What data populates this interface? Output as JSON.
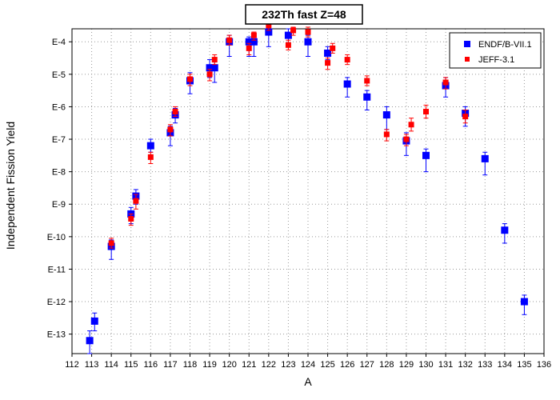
{
  "chart_data": {
    "type": "scatter",
    "title": "232Th fast Z=48",
    "xlabel": "A",
    "ylabel": "Independent Fission Yield",
    "xlim": [
      112,
      136
    ],
    "ylim_exponent": [
      -13.6,
      -3.6
    ],
    "y_scale": "log",
    "grid": true,
    "legend_position": "top-right",
    "x_ticks": [
      "112",
      "113",
      "114",
      "115",
      "116",
      "117",
      "118",
      "119",
      "120",
      "121",
      "122",
      "123",
      "124",
      "125",
      "126",
      "127",
      "128",
      "129",
      "130",
      "131",
      "132",
      "133",
      "134",
      "135",
      "136"
    ],
    "y_ticks": [
      {
        "label": "E-4",
        "exp": -4
      },
      {
        "label": "E-5",
        "exp": -5
      },
      {
        "label": "E-6",
        "exp": -6
      },
      {
        "label": "E-7",
        "exp": -7
      },
      {
        "label": "E-8",
        "exp": -8
      },
      {
        "label": "E-9",
        "exp": -9
      },
      {
        "label": "E-10",
        "exp": -10
      },
      {
        "label": "E-11",
        "exp": -11
      },
      {
        "label": "E-12",
        "exp": -12
      },
      {
        "label": "E-13",
        "exp": -13
      }
    ],
    "series": [
      {
        "name": "ENDF/B-VII.1",
        "color": "#0000ff",
        "marker": "square-large",
        "points": [
          {
            "x": 112.9,
            "exp": -13.2,
            "lo": -13.6,
            "hi": -12.9
          },
          {
            "x": 113.15,
            "exp": -12.6,
            "lo": -12.9,
            "hi": -12.35
          },
          {
            "x": 114.0,
            "exp": -10.3,
            "lo": -10.7,
            "hi": -10.1
          },
          {
            "x": 115.0,
            "exp": -9.3,
            "lo": -9.6,
            "hi": -9.1
          },
          {
            "x": 115.25,
            "exp": -8.75,
            "lo": -9.0,
            "hi": -8.55
          },
          {
            "x": 116.0,
            "exp": -7.2,
            "lo": -7.4,
            "hi": -7.0
          },
          {
            "x": 117.0,
            "exp": -6.8,
            "lo": -7.2,
            "hi": -6.6
          },
          {
            "x": 117.25,
            "exp": -6.25,
            "lo": -6.5,
            "hi": -6.05
          },
          {
            "x": 118.0,
            "exp": -5.2,
            "lo": -5.6,
            "hi": -4.95
          },
          {
            "x": 119.0,
            "exp": -4.8,
            "lo": -5.1,
            "hi": -4.55
          },
          {
            "x": 119.25,
            "exp": -4.8,
            "lo": -5.25,
            "hi": -4.6
          },
          {
            "x": 120.0,
            "exp": -4.0,
            "lo": -4.45,
            "hi": -3.8
          },
          {
            "x": 121.0,
            "exp": -4.0,
            "lo": -4.45,
            "hi": -3.85
          },
          {
            "x": 121.25,
            "exp": -4.0,
            "lo": -4.45,
            "hi": -3.85
          },
          {
            "x": 122.0,
            "exp": -3.7,
            "lo": -4.15,
            "hi": -3.55
          },
          {
            "x": 123.0,
            "exp": -3.8,
            "lo": -4.15,
            "hi": -3.6
          },
          {
            "x": 124.0,
            "exp": -4.0,
            "lo": -4.45,
            "hi": -3.8
          },
          {
            "x": 125.0,
            "exp": -4.35,
            "lo": -4.55,
            "hi": -4.15
          },
          {
            "x": 126.0,
            "exp": -5.3,
            "lo": -5.7,
            "hi": -5.1
          },
          {
            "x": 127.0,
            "exp": -5.7,
            "lo": -6.1,
            "hi": -5.5
          },
          {
            "x": 128.0,
            "exp": -6.25,
            "lo": -6.7,
            "hi": -6.0
          },
          {
            "x": 129.0,
            "exp": -7.05,
            "lo": -7.5,
            "hi": -6.8
          },
          {
            "x": 130.0,
            "exp": -7.5,
            "lo": -8.0,
            "hi": -7.3
          },
          {
            "x": 131.0,
            "exp": -5.35,
            "lo": -5.7,
            "hi": -5.1
          },
          {
            "x": 132.0,
            "exp": -6.2,
            "lo": -6.6,
            "hi": -6.0
          },
          {
            "x": 133.0,
            "exp": -7.6,
            "lo": -8.1,
            "hi": -7.4
          },
          {
            "x": 134.0,
            "exp": -9.8,
            "lo": -10.2,
            "hi": -9.6
          },
          {
            "x": 135.0,
            "exp": -12.0,
            "lo": -12.4,
            "hi": -11.8
          }
        ]
      },
      {
        "name": "JEFF-3.1",
        "color": "#ff0000",
        "marker": "square-small",
        "points": [
          {
            "x": 114.0,
            "exp": -10.2,
            "lo": -10.35,
            "hi": -10.05
          },
          {
            "x": 115.0,
            "exp": -9.45,
            "lo": -9.65,
            "hi": -9.3
          },
          {
            "x": 115.25,
            "exp": -8.9,
            "lo": -9.15,
            "hi": -8.7
          },
          {
            "x": 116.0,
            "exp": -7.55,
            "lo": -7.75,
            "hi": -7.4
          },
          {
            "x": 117.0,
            "exp": -6.7,
            "lo": -6.9,
            "hi": -6.55
          },
          {
            "x": 117.25,
            "exp": -6.15,
            "lo": -6.3,
            "hi": -6.0
          },
          {
            "x": 118.0,
            "exp": -5.15,
            "lo": -5.35,
            "hi": -5.0
          },
          {
            "x": 119.0,
            "exp": -5.0,
            "lo": -5.2,
            "hi": -4.85
          },
          {
            "x": 119.25,
            "exp": -4.55,
            "lo": -4.7,
            "hi": -4.4
          },
          {
            "x": 120.0,
            "exp": -3.95,
            "lo": -4.1,
            "hi": -3.8
          },
          {
            "x": 121.0,
            "exp": -4.2,
            "lo": -4.4,
            "hi": -4.05
          },
          {
            "x": 121.25,
            "exp": -3.8,
            "lo": -3.95,
            "hi": -3.7
          },
          {
            "x": 122.0,
            "exp": -3.5,
            "lo": -3.65,
            "hi": -3.4
          },
          {
            "x": 123.0,
            "exp": -4.1,
            "lo": -4.25,
            "hi": -3.95
          },
          {
            "x": 123.25,
            "exp": -3.65,
            "lo": -3.8,
            "hi": -3.55
          },
          {
            "x": 124.0,
            "exp": -3.7,
            "lo": -3.85,
            "hi": -3.55
          },
          {
            "x": 125.0,
            "exp": -4.65,
            "lo": -4.85,
            "hi": -4.5
          },
          {
            "x": 125.25,
            "exp": -4.2,
            "lo": -4.35,
            "hi": -4.05
          },
          {
            "x": 126.0,
            "exp": -4.55,
            "lo": -4.7,
            "hi": -4.4
          },
          {
            "x": 127.0,
            "exp": -5.2,
            "lo": -5.35,
            "hi": -5.05
          },
          {
            "x": 128.0,
            "exp": -6.85,
            "lo": -7.05,
            "hi": -6.7
          },
          {
            "x": 129.0,
            "exp": -7.0,
            "lo": -7.2,
            "hi": -6.85
          },
          {
            "x": 129.25,
            "exp": -6.55,
            "lo": -6.75,
            "hi": -6.35
          },
          {
            "x": 130.0,
            "exp": -6.15,
            "lo": -6.35,
            "hi": -5.95
          },
          {
            "x": 131.0,
            "exp": -5.25,
            "lo": -5.45,
            "hi": -5.1
          },
          {
            "x": 132.0,
            "exp": -6.3,
            "lo": -6.5,
            "hi": -6.1
          }
        ]
      }
    ]
  }
}
